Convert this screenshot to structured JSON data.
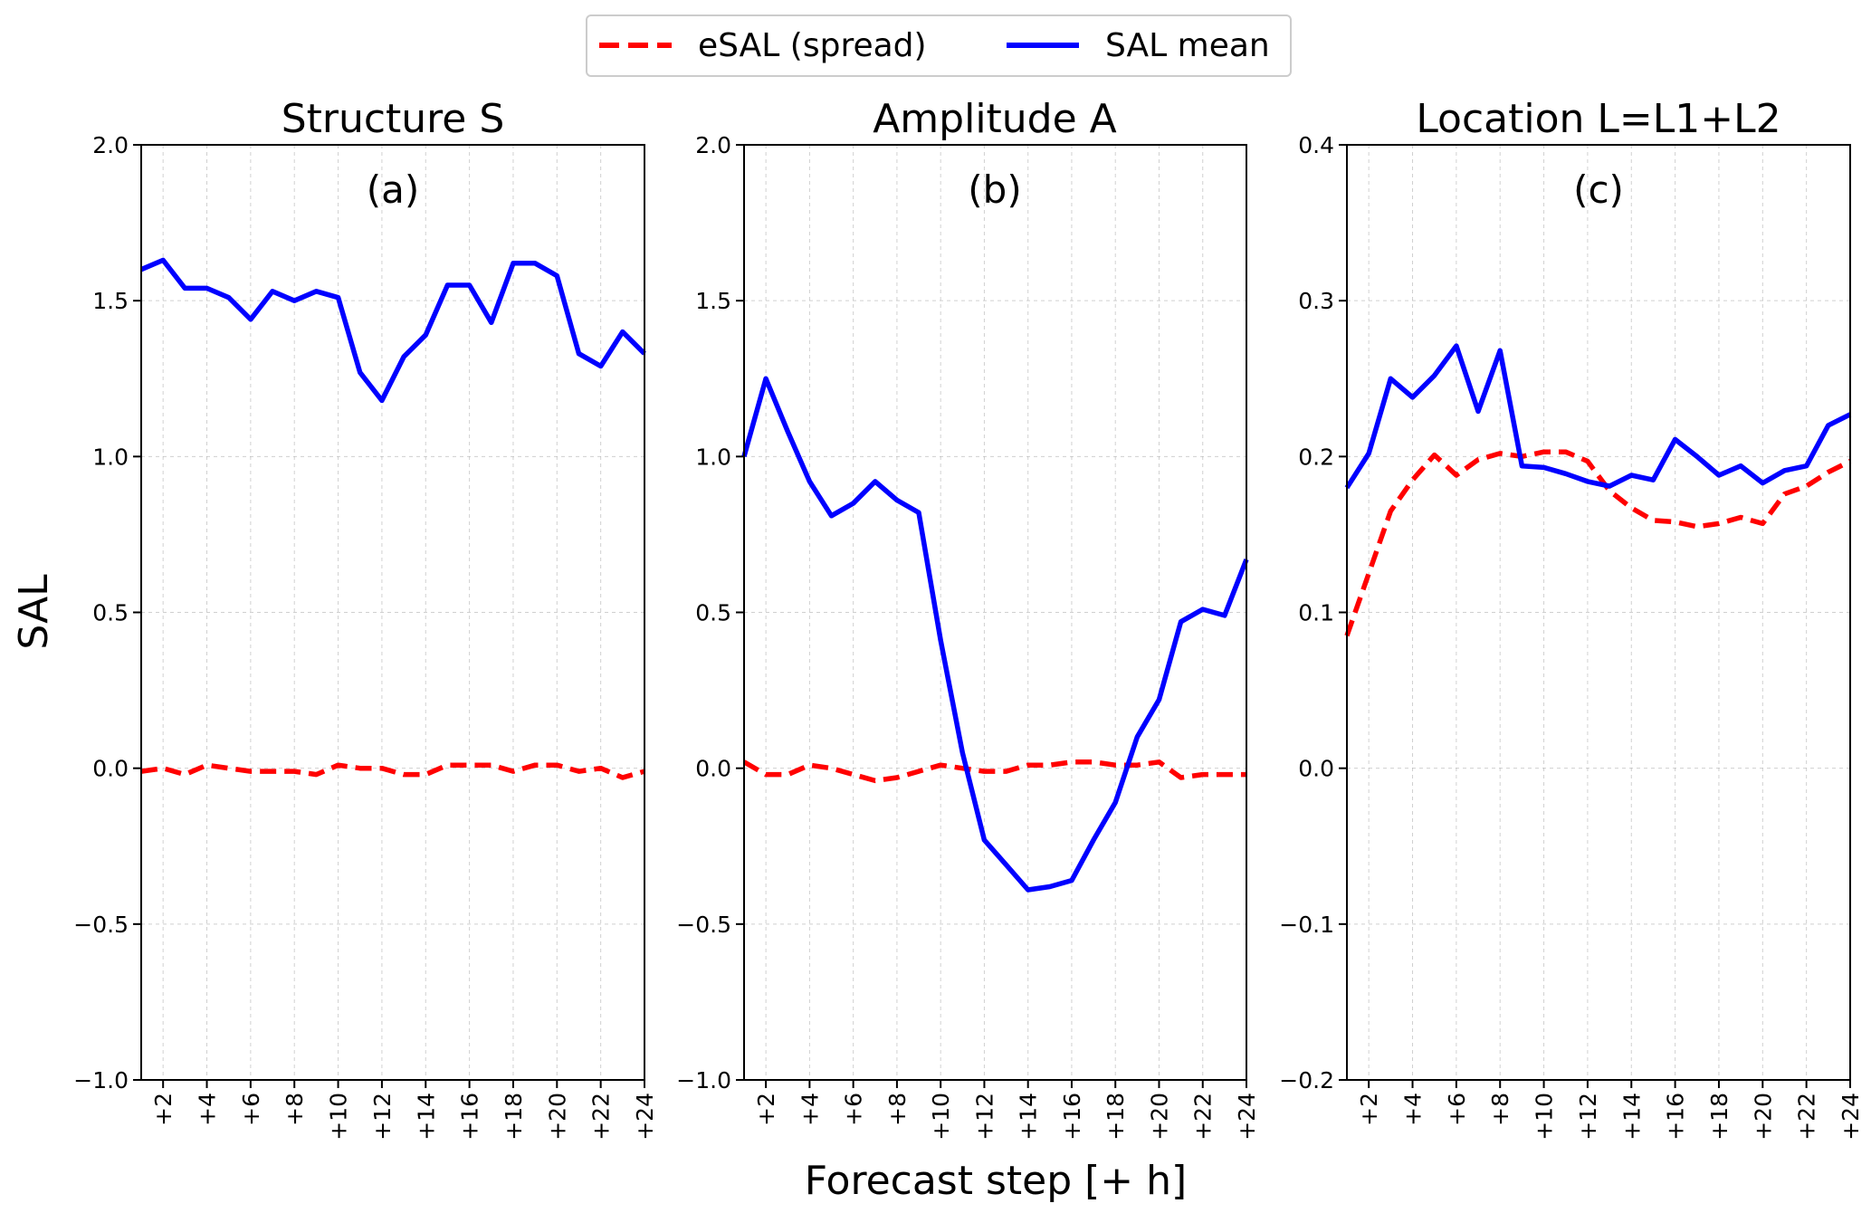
{
  "legend": {
    "entries": [
      {
        "label": "eSAL (spread)",
        "color": "#ff0000",
        "style": "dashed"
      },
      {
        "label": "SAL mean",
        "color": "#0000ff",
        "style": "solid"
      }
    ]
  },
  "ylabel": "SAL",
  "xlabel": "Forecast step [+ h]",
  "chart_data": [
    {
      "type": "line",
      "title": "Structure S",
      "panel_label": "(a)",
      "ylim": [
        -1.0,
        2.0
      ],
      "yticks": [
        -1.0,
        -0.5,
        0.0,
        0.5,
        1.0,
        1.5,
        2.0
      ],
      "ytick_labels": [
        "−1.0",
        "−0.5",
        "0.0",
        "0.5",
        "1.0",
        "1.5",
        "2.0"
      ],
      "xlim": [
        1,
        24
      ],
      "xtick_values": [
        2,
        4,
        6,
        8,
        10,
        12,
        14,
        16,
        18,
        20,
        22,
        24
      ],
      "xtick_labels": [
        "+2",
        "+4",
        "+6",
        "+8",
        "+10",
        "+12",
        "+14",
        "+16",
        "+18",
        "+20",
        "+22",
        "+24"
      ],
      "x": [
        1,
        2,
        3,
        4,
        5,
        6,
        7,
        8,
        9,
        10,
        11,
        12,
        13,
        14,
        15,
        16,
        17,
        18,
        19,
        20,
        21,
        22,
        23,
        24
      ],
      "series": [
        {
          "name": "eSAL (spread)",
          "color": "#ff0000",
          "style": "dashed",
          "values": [
            -0.01,
            0.0,
            -0.02,
            0.01,
            0.0,
            -0.01,
            -0.01,
            -0.01,
            -0.02,
            0.01,
            0.0,
            0.0,
            -0.02,
            -0.02,
            0.01,
            0.01,
            0.01,
            -0.01,
            0.01,
            0.01,
            -0.01,
            0.0,
            -0.03,
            -0.01
          ]
        },
        {
          "name": "SAL mean",
          "color": "#0000ff",
          "style": "solid",
          "values": [
            1.6,
            1.63,
            1.54,
            1.54,
            1.51,
            1.44,
            1.53,
            1.5,
            1.53,
            1.51,
            1.27,
            1.18,
            1.32,
            1.39,
            1.55,
            1.55,
            1.43,
            1.62,
            1.62,
            1.58,
            1.33,
            1.29,
            1.4,
            1.33
          ]
        }
      ]
    },
    {
      "type": "line",
      "title": "Amplitude A",
      "panel_label": "(b)",
      "ylim": [
        -1.0,
        2.0
      ],
      "yticks": [
        -1.0,
        -0.5,
        0.0,
        0.5,
        1.0,
        1.5,
        2.0
      ],
      "ytick_labels": [
        "−1.0",
        "−0.5",
        "0.0",
        "0.5",
        "1.0",
        "1.5",
        "2.0"
      ],
      "xlim": [
        1,
        24
      ],
      "xtick_values": [
        2,
        4,
        6,
        8,
        10,
        12,
        14,
        16,
        18,
        20,
        22,
        24
      ],
      "xtick_labels": [
        "+2",
        "+4",
        "+6",
        "+8",
        "+10",
        "+12",
        "+14",
        "+16",
        "+18",
        "+20",
        "+22",
        "+24"
      ],
      "x": [
        1,
        2,
        3,
        4,
        5,
        6,
        7,
        8,
        9,
        10,
        11,
        12,
        13,
        14,
        15,
        16,
        17,
        18,
        19,
        20,
        21,
        22,
        23,
        24
      ],
      "series": [
        {
          "name": "eSAL (spread)",
          "color": "#ff0000",
          "style": "dashed",
          "values": [
            0.02,
            -0.02,
            -0.02,
            0.01,
            0.0,
            -0.02,
            -0.04,
            -0.03,
            -0.01,
            0.01,
            0.0,
            -0.01,
            -0.01,
            0.01,
            0.01,
            0.02,
            0.02,
            0.01,
            0.01,
            0.02,
            -0.03,
            -0.02,
            -0.02,
            -0.02
          ]
        },
        {
          "name": "SAL mean",
          "color": "#0000ff",
          "style": "solid",
          "values": [
            1.0,
            1.25,
            1.08,
            0.92,
            0.81,
            0.85,
            0.92,
            0.86,
            0.82,
            0.41,
            0.05,
            -0.23,
            -0.31,
            -0.39,
            -0.38,
            -0.36,
            -0.23,
            -0.11,
            0.1,
            0.22,
            0.47,
            0.51,
            0.49,
            0.67
          ]
        }
      ]
    },
    {
      "type": "line",
      "title": "Location L=L1+L2",
      "panel_label": "(c)",
      "ylim": [
        -0.2,
        0.4
      ],
      "yticks": [
        -0.2,
        -0.1,
        0.0,
        0.1,
        0.2,
        0.3,
        0.4
      ],
      "ytick_labels": [
        "−0.2",
        "−0.1",
        "0.0",
        "0.1",
        "0.2",
        "0.3",
        "0.4"
      ],
      "xlim": [
        1,
        24
      ],
      "xtick_values": [
        2,
        4,
        6,
        8,
        10,
        12,
        14,
        16,
        18,
        20,
        22,
        24
      ],
      "xtick_labels": [
        "+2",
        "+4",
        "+6",
        "+8",
        "+10",
        "+12",
        "+14",
        "+16",
        "+18",
        "+20",
        "+22",
        "+24"
      ],
      "x": [
        1,
        2,
        3,
        4,
        5,
        6,
        7,
        8,
        9,
        10,
        11,
        12,
        13,
        14,
        15,
        16,
        17,
        18,
        19,
        20,
        21,
        22,
        23,
        24
      ],
      "series": [
        {
          "name": "eSAL (spread)",
          "color": "#ff0000",
          "style": "dashed",
          "values": [
            0.085,
            0.125,
            0.165,
            0.185,
            0.201,
            0.188,
            0.198,
            0.202,
            0.2,
            0.203,
            0.203,
            0.197,
            0.178,
            0.167,
            0.159,
            0.158,
            0.155,
            0.157,
            0.161,
            0.157,
            0.176,
            0.181,
            0.19,
            0.197
          ]
        },
        {
          "name": "SAL mean",
          "color": "#0000ff",
          "style": "solid",
          "values": [
            0.18,
            0.202,
            0.25,
            0.238,
            0.252,
            0.271,
            0.229,
            0.268,
            0.194,
            0.193,
            0.189,
            0.184,
            0.181,
            0.188,
            0.185,
            0.211,
            0.2,
            0.188,
            0.194,
            0.183,
            0.191,
            0.194,
            0.22,
            0.227
          ]
        }
      ]
    }
  ]
}
